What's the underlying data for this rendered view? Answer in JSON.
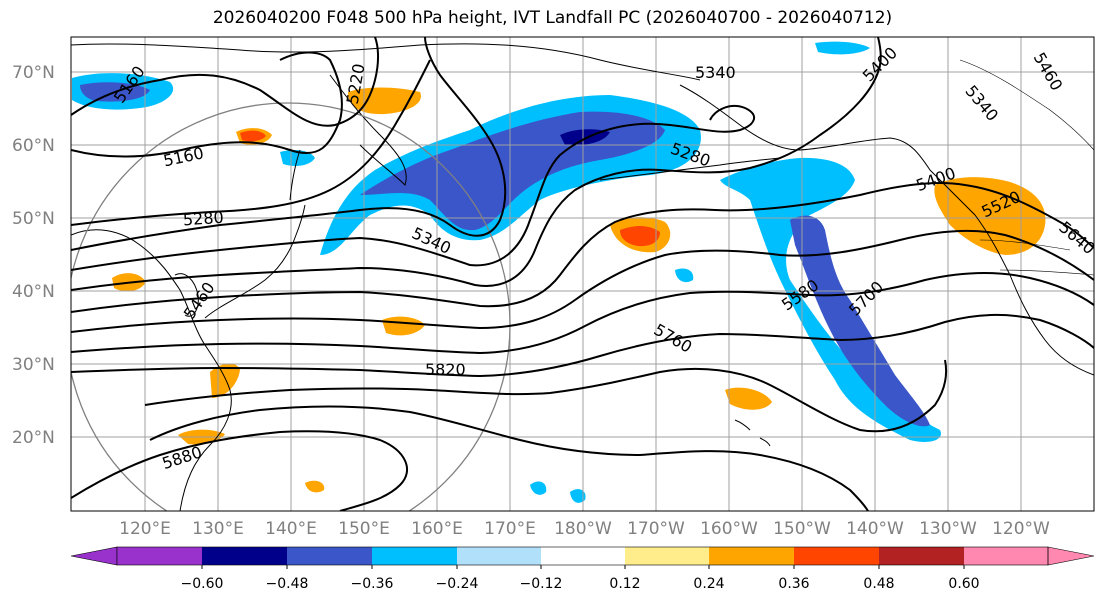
{
  "title": "2026040200 F048 500 hPa height, IVT Landfall PC (2026040700 - 2026040712)",
  "lat_labels": [
    "70°N",
    "60°N",
    "50°N",
    "40°N",
    "30°N",
    "20°N"
  ],
  "lon_labels": [
    "120°E",
    "130°E",
    "140°E",
    "150°E",
    "160°E",
    "170°E",
    "180°W",
    "170°W",
    "160°W",
    "150°W",
    "140°W",
    "130°W",
    "120°W"
  ],
  "contour_labels": [
    "5160",
    "5160",
    "5220",
    "5280",
    "5280",
    "5340",
    "5340",
    "5340",
    "5400",
    "5460",
    "5400",
    "5520",
    "5580",
    "5640",
    "5700",
    "5760",
    "5820",
    "5880",
    "5460"
  ],
  "colorbar": {
    "tick_labels": [
      "−0.60",
      "−0.48",
      "−0.36",
      "−0.24",
      "−0.12",
      "0.12",
      "0.24",
      "0.36",
      "0.48",
      "0.60"
    ],
    "colors": [
      "#9932cc",
      "#00008b",
      "#3a56c9",
      "#00bfff",
      "#b0e0fa",
      "#ffffff",
      "#ffec8b",
      "#ffa500",
      "#ff4500",
      "#b22222",
      "#ff88b0"
    ]
  }
}
